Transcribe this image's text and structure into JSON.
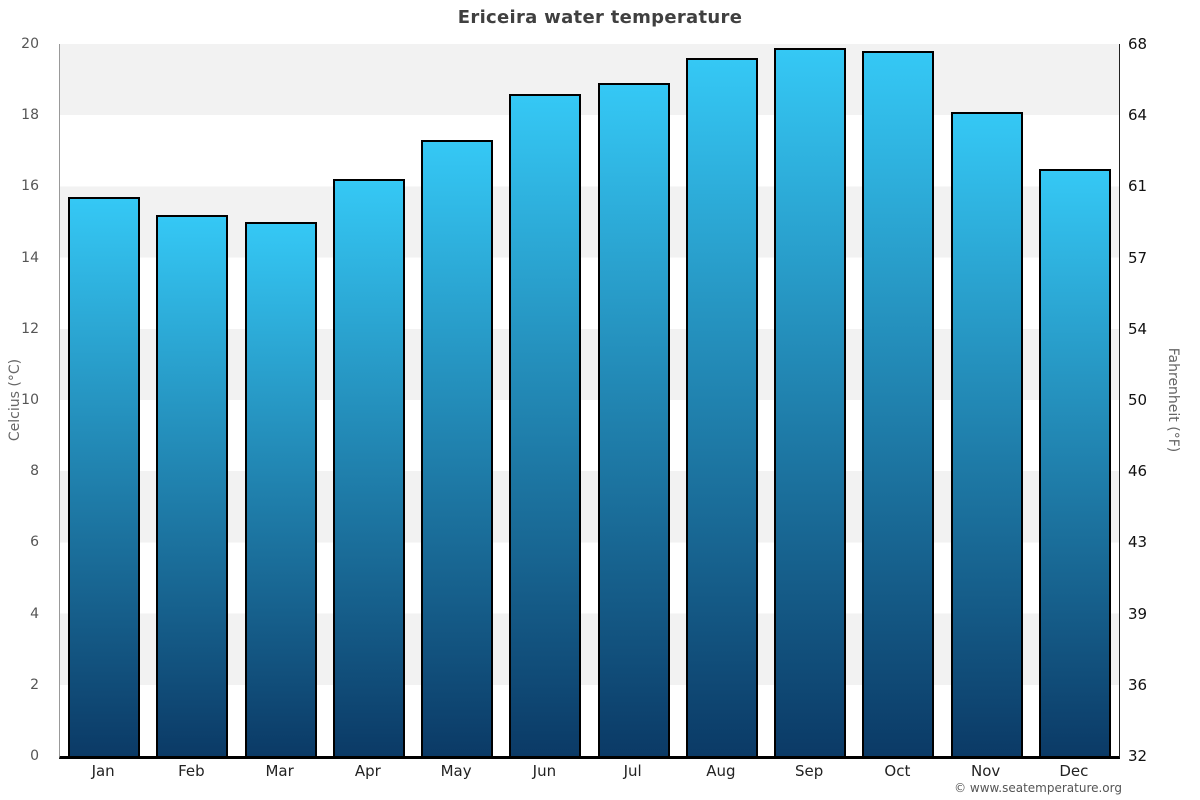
{
  "page": {
    "title": "Ericeira water temperature",
    "copyright": "© www.seatemperature.org"
  },
  "chart_data": {
    "type": "bar",
    "title": "Ericeira water temperature",
    "categories": [
      "Jan",
      "Feb",
      "Mar",
      "Apr",
      "May",
      "Jun",
      "Jul",
      "Aug",
      "Sep",
      "Oct",
      "Nov",
      "Dec"
    ],
    "values": [
      15.7,
      15.2,
      15.0,
      16.2,
      17.3,
      18.6,
      18.9,
      19.6,
      19.9,
      19.8,
      18.1,
      16.5
    ],
    "ylabel_left": "Celcius (°C)",
    "ylabel_right": "Fahrenheit (°F)",
    "ylim_celsius": [
      0,
      20
    ],
    "yticks_celsius": [
      20,
      18,
      16,
      14,
      12,
      10,
      8,
      6,
      4,
      2,
      0
    ],
    "yticks_fahrenheit": [
      68,
      64,
      61,
      57,
      54,
      50,
      46,
      43,
      39,
      36,
      32
    ],
    "legend": false,
    "grid": "alternating horizontal bands every 2°C",
    "colors": {
      "bar_gradient_top": "#35c8f5",
      "bar_gradient_bottom": "#0b3a66",
      "bar_border": "#000000",
      "band_gray": "#f2f2f2",
      "band_white": "#ffffff",
      "title_text": "#404040",
      "left_tick_text": "#555555",
      "right_tick_text": "#111111",
      "axis_title_text": "#666666"
    }
  }
}
